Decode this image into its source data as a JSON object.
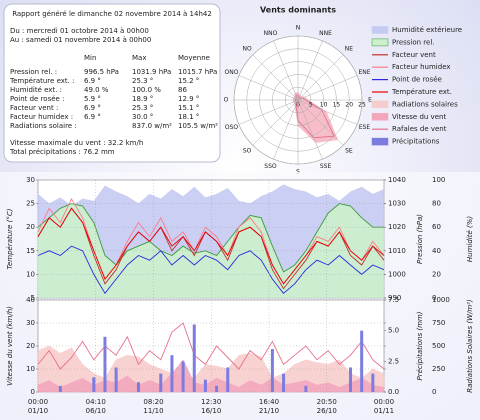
{
  "report": {
    "title": "Rapport généré le dimanche 02 novembre 2014 à 14h42",
    "from": "Du : mercredi 01 octobre 2014 à 00h00",
    "to": "Au : samedi 01 novembre 2014 à 00h00",
    "columns": [
      "Min",
      "Max",
      "Moyenne"
    ],
    "rows": [
      {
        "label": "Pression rel. :",
        "min": "996.5 hPa",
        "max": "1031.9 hPa",
        "mean": "1015.7 hPa"
      },
      {
        "label": "Température ext. :",
        "min": "6.9 °",
        "max": "25.3 °",
        "mean": "15.2 °"
      },
      {
        "label": "Humidité ext. :",
        "min": "49.0 %",
        "max": "100.0 %",
        "mean": "86"
      },
      {
        "label": "Point de rosée :",
        "min": "5.9 °",
        "max": "18.9 °",
        "mean": "12.9 °"
      },
      {
        "label": "Facteur vent :",
        "min": "6.9 °",
        "max": "25.3 °",
        "mean": "15.1 °"
      },
      {
        "label": "Facteur humidex :",
        "min": "6.9 °",
        "max": "30.0 °",
        "mean": "18.1 °"
      },
      {
        "label": "Radiations solaire :",
        "max": "837.0 w/m²",
        "mean": "105.5 w/m²"
      }
    ],
    "max_wind": "Vitesse maximale du vent : 32.2 km/h",
    "total_rain": "Total précipitations : 76.2 mm"
  },
  "chart_data": [
    {
      "type": "rose",
      "title": "Vents dominants",
      "directions": [
        "N",
        "NNE",
        "NE",
        "ENE",
        "E",
        "ESE",
        "SE",
        "SSE",
        "S",
        "SSO",
        "SO",
        "OSO",
        "O",
        "ONO",
        "NO",
        "NNO"
      ],
      "rlim": [
        0,
        25
      ],
      "rticks": [
        0,
        5,
        10,
        15,
        20,
        25
      ],
      "series": [
        {
          "color": "#f6b2c0",
          "kind": "area",
          "values": [
            3,
            2,
            2,
            3,
            4,
            12,
            22,
            18,
            10,
            3,
            2,
            2,
            2,
            2,
            2,
            3
          ]
        },
        {
          "color": "#e06a88",
          "kind": "line",
          "values": [
            2,
            1,
            1,
            2,
            3,
            10,
            20,
            16,
            8,
            2,
            1,
            1,
            1,
            1,
            1,
            2
          ]
        }
      ]
    },
    {
      "type": "line",
      "xlim": [
        0,
        31
      ],
      "x": [
        0,
        1,
        2,
        3,
        4,
        5,
        6,
        7,
        8,
        9,
        10,
        11,
        12,
        13,
        14,
        15,
        16,
        17,
        18,
        19,
        20,
        21,
        22,
        23,
        24,
        25,
        26,
        27,
        28,
        29,
        30,
        31
      ],
      "ylabel": "Température (°C)",
      "ylim": [
        5,
        30
      ],
      "yticks": [
        5,
        10,
        15,
        20,
        25,
        30
      ],
      "y2label": "Pression (hPa)",
      "y2lim": [
        990,
        1040
      ],
      "y2ticks": [
        990,
        1000,
        1010,
        1020,
        1030,
        1040
      ],
      "y3label": "Humidité (%)",
      "y3lim": [
        0,
        100
      ],
      "y3ticks": [
        0,
        20,
        40,
        60,
        80,
        100
      ],
      "grid": true,
      "series": [
        {
          "name": "Humidité extérieure",
          "color": "#c4caf2",
          "kind": "area",
          "axis": "y3",
          "values": [
            88,
            80,
            85,
            78,
            84,
            82,
            95,
            90,
            86,
            80,
            88,
            84,
            92,
            86,
            94,
            85,
            88,
            93,
            82,
            80,
            86,
            90,
            96,
            92,
            90,
            85,
            88,
            82,
            90,
            94,
            88,
            92
          ]
        },
        {
          "name": "Pression rel.",
          "color": "#3a9a3a",
          "fill": "#ccefcc",
          "kind": "area",
          "axis": "y2",
          "values": [
            1020,
            1024,
            1028,
            1030,
            1029,
            1022,
            1008,
            1004,
            1010,
            1012,
            1014,
            1010,
            1008,
            1012,
            1009,
            1010,
            1008,
            1014,
            1020,
            1025,
            1024,
            1012,
            1001,
            1004,
            1010,
            1018,
            1026,
            1030,
            1029,
            1024,
            1020,
            1020
          ]
        },
        {
          "name": "Facteur vent",
          "color": "#c03030",
          "kind": "line",
          "axis": "y",
          "values": [
            18,
            22,
            20,
            24,
            21,
            14,
            8,
            11,
            16,
            19,
            17,
            20,
            15,
            18,
            14,
            19,
            17,
            13,
            19,
            20,
            18,
            11,
            7,
            10,
            13,
            17,
            16,
            19,
            14,
            12,
            16,
            13
          ]
        },
        {
          "name": "Facteur humidex",
          "color": "#ff7a8a",
          "kind": "line",
          "axis": "y",
          "values": [
            19,
            24,
            21,
            26,
            22,
            15,
            9,
            12,
            17,
            21,
            18,
            22,
            17,
            19,
            15,
            20,
            18,
            14,
            20,
            22,
            19,
            12,
            8,
            11,
            14,
            18,
            17,
            20,
            15,
            13,
            17,
            14
          ]
        },
        {
          "name": "Point de rosée",
          "color": "#2a2ae0",
          "kind": "line",
          "axis": "y",
          "values": [
            14,
            15,
            14,
            16,
            15,
            10,
            6,
            9,
            12,
            14,
            13,
            15,
            12,
            14,
            12,
            14,
            13,
            11,
            14,
            15,
            13,
            9,
            6,
            8,
            11,
            13,
            12,
            14,
            12,
            10,
            12,
            11
          ]
        },
        {
          "name": "Température ext.",
          "color": "#e80000",
          "kind": "line",
          "axis": "y",
          "values": [
            18,
            22,
            20,
            24,
            21,
            15,
            9,
            12,
            16,
            19,
            17,
            20,
            16,
            18,
            15,
            19,
            17,
            14,
            19,
            20,
            18,
            12,
            8,
            11,
            14,
            17,
            16,
            19,
            15,
            13,
            16,
            14
          ]
        }
      ]
    },
    {
      "type": "line",
      "xlim": [
        0,
        31
      ],
      "x": [
        0,
        1,
        2,
        3,
        4,
        5,
        6,
        7,
        8,
        9,
        10,
        11,
        12,
        13,
        14,
        15,
        16,
        17,
        18,
        19,
        20,
        21,
        22,
        23,
        24,
        25,
        26,
        27,
        28,
        29,
        30,
        31
      ],
      "xticks": [
        {
          "value": 0,
          "label": "00:00",
          "date": "01/10"
        },
        {
          "value": 5.1736,
          "label": "04:10",
          "date": "06/10"
        },
        {
          "value": 10.3472,
          "label": "08:20",
          "date": "11/10"
        },
        {
          "value": 15.5208,
          "label": "12:30",
          "date": "16/10"
        },
        {
          "value": 20.6944,
          "label": "16:40",
          "date": "21/10"
        },
        {
          "value": 25.8681,
          "label": "20:50",
          "date": "26/10"
        },
        {
          "value": 31,
          "label": "00:00",
          "date": "01/11"
        }
      ],
      "ylabel": "Vitesse du vent (km/h)",
      "ylim": [
        0,
        40
      ],
      "yticks": [
        0,
        10,
        20,
        30,
        40
      ],
      "y2label": "Précipitations (mm)",
      "y2lim": [
        0,
        7.5
      ],
      "y2ticks": [
        {
          "value": 0,
          "label": "0.0"
        },
        2.5,
        {
          "value": 5,
          "label": "5.0"
        },
        7.5
      ],
      "y3label": "Radiations Solaires (W/m²)",
      "y3lim": [
        0,
        1000
      ],
      "y3ticks": [
        0,
        250,
        500,
        750,
        1000
      ],
      "grid": true,
      "series": [
        {
          "name": "Radiations solaires",
          "color": "#f7cccc",
          "kind": "area",
          "axis": "y3",
          "values": [
            450,
            500,
            420,
            480,
            300,
            200,
            150,
            350,
            400,
            380,
            300,
            250,
            200,
            180,
            150,
            300,
            280,
            250,
            400,
            420,
            380,
            150,
            200,
            300,
            350,
            320,
            300,
            350,
            200,
            150,
            250,
            200
          ]
        },
        {
          "name": "Vitesse du vent",
          "color": "#f2a6bc",
          "kind": "area",
          "axis": "y",
          "values": [
            3,
            5,
            2,
            4,
            6,
            3,
            5,
            4,
            7,
            3,
            5,
            3,
            8,
            14,
            4,
            3,
            6,
            4,
            2,
            5,
            3,
            6,
            3,
            4,
            5,
            3,
            4,
            2,
            4,
            6,
            3,
            2
          ]
        },
        {
          "name": "Rafales de vent",
          "color": "#e8708c",
          "kind": "line",
          "axis": "y",
          "values": [
            12,
            18,
            10,
            15,
            22,
            14,
            20,
            16,
            24,
            12,
            18,
            14,
            26,
            30,
            16,
            12,
            20,
            15,
            10,
            18,
            14,
            22,
            12,
            16,
            20,
            14,
            18,
            12,
            16,
            22,
            14,
            10
          ]
        },
        {
          "name": "Précipitations",
          "color": "#7c7ce0",
          "kind": "bar",
          "axis": "y2",
          "values": [
            0,
            0,
            0.5,
            0,
            0,
            1.2,
            4.5,
            2,
            0,
            0.8,
            0,
            1.5,
            3,
            2.5,
            5.5,
            1,
            0.5,
            2,
            0,
            0,
            0,
            3.5,
            1.5,
            0,
            0.5,
            0,
            0,
            0,
            2,
            5,
            1.5,
            0
          ]
        }
      ]
    }
  ]
}
